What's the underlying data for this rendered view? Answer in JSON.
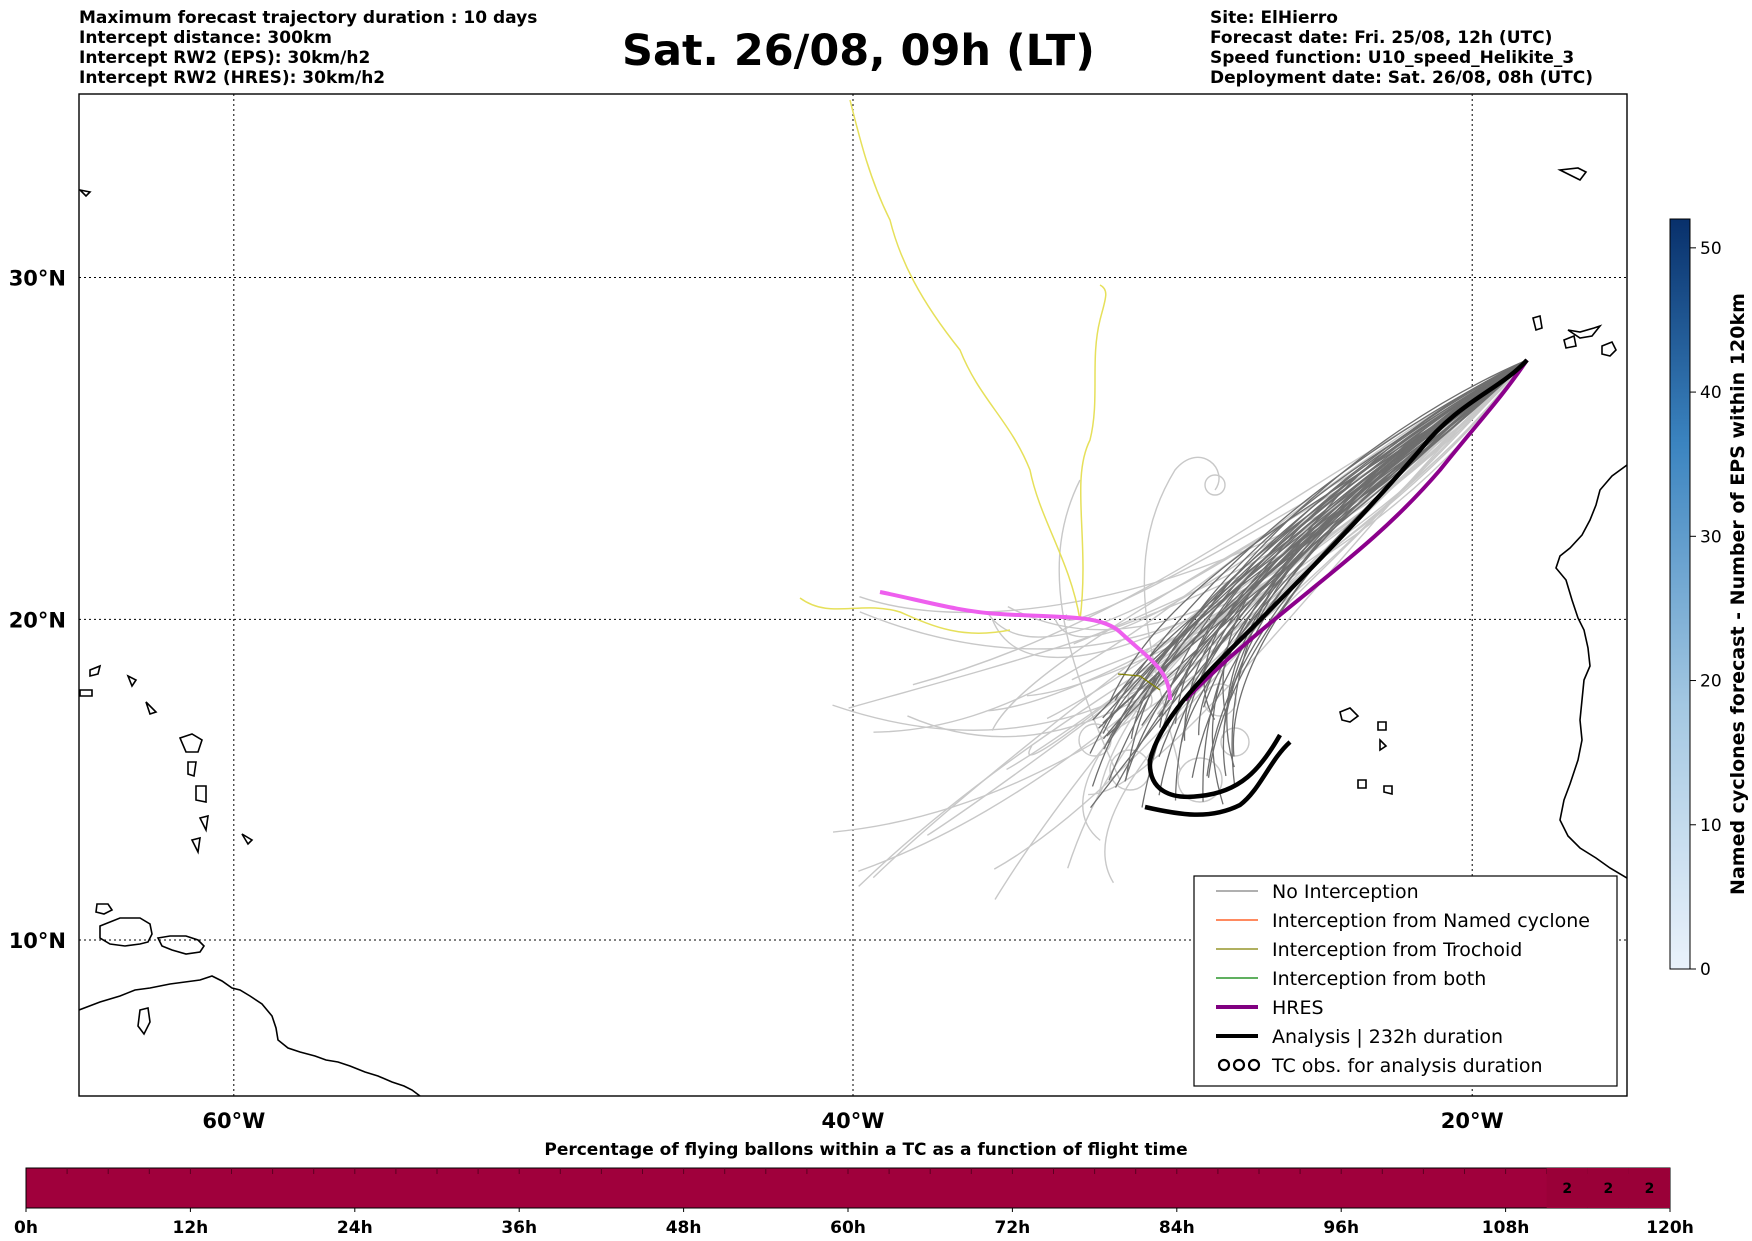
{
  "header": {
    "left_lines": [
      "Maximum forecast trajectory duration : 10 days",
      "Intercept distance: 300km",
      "Intercept RW2 (EPS):  30km/h2",
      "Intercept RW2 (HRES): 30km/h2"
    ],
    "title": "Sat. 26/08, 09h (LT)",
    "right_lines": [
      "Site: ElHierro",
      "Forecast date: Fri. 25/08, 12h (UTC)",
      "Speed function: U10_speed_Helikite_3",
      "Deployment date: Sat. 26/08, 08h (UTC)"
    ]
  },
  "map": {
    "lon_range": [
      -65,
      -15
    ],
    "lat_range": [
      5,
      35
    ],
    "lon_ticks": [
      {
        "value": -60,
        "label": "60°W"
      },
      {
        "value": -40,
        "label": "40°W"
      },
      {
        "value": -20,
        "label": "20°W"
      }
    ],
    "lat_ticks": [
      {
        "value": 30,
        "label": "30°N"
      },
      {
        "value": 20,
        "label": "20°N"
      },
      {
        "value": 10,
        "label": "10°N"
      }
    ],
    "legend": {
      "position": "lower-right",
      "entries": [
        {
          "label": "No Interception",
          "color": "#808080",
          "style": "thin"
        },
        {
          "label": "Interception from Named cyclone",
          "color": "#ff4500",
          "style": "thin"
        },
        {
          "label": "Interception from Trochoid",
          "color": "#808000",
          "style": "thin"
        },
        {
          "label": "Interception from both",
          "color": "#008000",
          "style": "thin"
        },
        {
          "label": "HRES",
          "color": "#800080",
          "style": "thick"
        },
        {
          "label": "Analysis | 232h duration",
          "color": "#000000",
          "style": "thick"
        },
        {
          "label": "TC obs. for analysis duration",
          "color": "#000000",
          "style": "symbol"
        }
      ]
    },
    "colors": {
      "no_interception": "#6e6e6e",
      "faded_member": "#c8c8c8",
      "yellow_member": "#e6e05a",
      "hres": "#8b008b",
      "hres_faded": "#ee5fee",
      "analysis": "#000000"
    }
  },
  "colorbar": {
    "label": "Named cyclones forecast - Number of EPS within 120km",
    "min": 0,
    "max": 52,
    "ticks": [
      0,
      10,
      20,
      30,
      40,
      50
    ]
  },
  "bottom_bar": {
    "title": "Percentage of flying ballons within a TC as a function of flight time",
    "hour_ticks": [
      "0h",
      "12h",
      "24h",
      "36h",
      "48h",
      "60h",
      "72h",
      "84h",
      "96h",
      "108h",
      "120h"
    ],
    "fill_color": "#a0003c",
    "highlight_color": "#9a0038",
    "segment_count": 40,
    "annotated_cells": [
      {
        "index": 37,
        "label": "2"
      },
      {
        "index": 38,
        "label": "2"
      },
      {
        "index": 39,
        "label": "2"
      }
    ]
  }
}
